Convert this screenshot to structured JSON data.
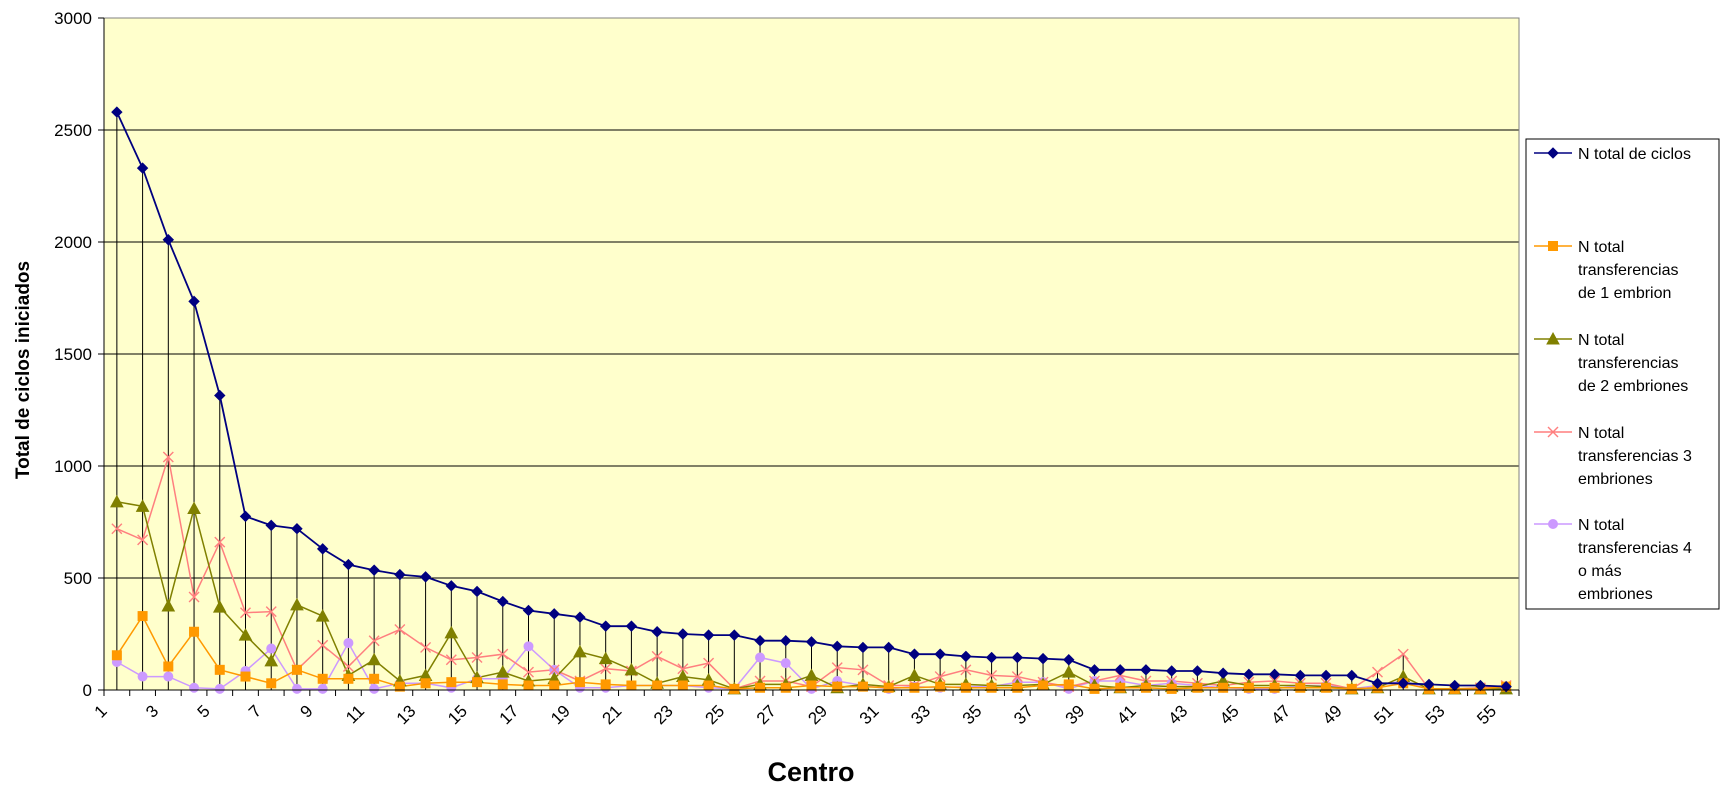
{
  "chart_data": {
    "type": "line",
    "xlabel": "Centro",
    "ylabel": "Total de ciclos iniciados",
    "ylim": [
      0,
      3000
    ],
    "yticks": [
      0,
      500,
      1000,
      1500,
      2000,
      2500,
      3000
    ],
    "xticks": [
      1,
      3,
      5,
      7,
      9,
      11,
      13,
      15,
      17,
      19,
      21,
      23,
      25,
      27,
      29,
      31,
      33,
      35,
      37,
      39,
      41,
      43,
      45,
      47,
      49,
      51,
      53,
      55
    ],
    "x": [
      1,
      2,
      3,
      4,
      5,
      6,
      7,
      8,
      9,
      10,
      11,
      12,
      13,
      14,
      15,
      16,
      17,
      18,
      19,
      20,
      21,
      22,
      23,
      24,
      25,
      26,
      27,
      28,
      29,
      30,
      31,
      32,
      33,
      34,
      35,
      36,
      37,
      38,
      39,
      40,
      41,
      42,
      43,
      44,
      45,
      46,
      47,
      48,
      49,
      50,
      51,
      52,
      53,
      54,
      55
    ],
    "plot_background": "#ffffcc",
    "grid": true,
    "legend_position": "right",
    "drop_lines": true,
    "series": [
      {
        "name": "N total de ciclos",
        "color": "#000080",
        "marker": "diamond",
        "values": [
          2580,
          2330,
          2010,
          1735,
          1315,
          775,
          735,
          720,
          630,
          560,
          535,
          515,
          505,
          465,
          440,
          395,
          355,
          340,
          325,
          285,
          285,
          260,
          250,
          245,
          245,
          220,
          220,
          215,
          195,
          190,
          190,
          160,
          160,
          150,
          145,
          145,
          140,
          135,
          90,
          90,
          90,
          85,
          85,
          75,
          70,
          70,
          65,
          65,
          65,
          30,
          30,
          25,
          20,
          20,
          15
        ]
      },
      {
        "name": "N total transferencias de 1 embrion",
        "color": "#ff9900",
        "marker": "square",
        "values": [
          155,
          330,
          105,
          260,
          90,
          60,
          30,
          90,
          50,
          50,
          50,
          15,
          30,
          35,
          35,
          25,
          20,
          20,
          35,
          25,
          20,
          20,
          20,
          20,
          5,
          10,
          10,
          20,
          15,
          15,
          10,
          10,
          15,
          10,
          10,
          10,
          20,
          25,
          5,
          10,
          10,
          5,
          10,
          10,
          10,
          10,
          10,
          10,
          5,
          10,
          30,
          5,
          5,
          5,
          15
        ]
      },
      {
        "name": "N total transferencias de 2 embriones",
        "color": "#808000",
        "marker": "triangle",
        "values": [
          840,
          820,
          375,
          810,
          370,
          245,
          130,
          380,
          330,
          65,
          135,
          40,
          65,
          255,
          55,
          80,
          40,
          50,
          170,
          140,
          90,
          30,
          60,
          45,
          5,
          25,
          25,
          65,
          10,
          25,
          15,
          65,
          25,
          25,
          20,
          20,
          25,
          80,
          20,
          10,
          20,
          15,
          15,
          40,
          20,
          20,
          20,
          15,
          5,
          10,
          60,
          5,
          5,
          5,
          5
        ]
      },
      {
        "name": "N total transferencias 3 embriones",
        "color": "#ff7f7f",
        "marker": "x",
        "values": [
          720,
          670,
          1040,
          415,
          660,
          345,
          350,
          90,
          200,
          105,
          220,
          270,
          190,
          135,
          145,
          160,
          80,
          90,
          40,
          95,
          85,
          150,
          95,
          120,
          5,
          40,
          40,
          15,
          100,
          90,
          20,
          20,
          60,
          90,
          65,
          60,
          35,
          15,
          40,
          65,
          40,
          40,
          30,
          20,
          35,
          40,
          30,
          30,
          5,
          80,
          160,
          5,
          5,
          10,
          20
        ]
      },
      {
        "name": "N total transferencias 4 o más embriones",
        "color": "#cc99ff",
        "marker": "circle",
        "values": [
          125,
          60,
          60,
          10,
          5,
          85,
          185,
          5,
          5,
          210,
          5,
          30,
          30,
          10,
          50,
          50,
          195,
          90,
          10,
          10,
          20,
          20,
          20,
          10,
          5,
          145,
          120,
          5,
          40,
          20,
          5,
          15,
          10,
          15,
          15,
          35,
          35,
          5,
          40,
          40,
          20,
          30,
          20,
          10,
          5,
          5,
          20,
          20,
          5,
          20,
          40,
          5,
          5,
          5,
          5
        ]
      }
    ],
    "legend_lines": [
      [
        "N total de ciclos"
      ],
      [
        "N total",
        "transferencias",
        "de 1 embrion"
      ],
      [
        "N total",
        "transferencias",
        "de 2 embriones"
      ],
      [
        "N total",
        "transferencias 3",
        "embriones"
      ],
      [
        "N total",
        "transferencias 4",
        "o más",
        "embriones"
      ]
    ]
  }
}
